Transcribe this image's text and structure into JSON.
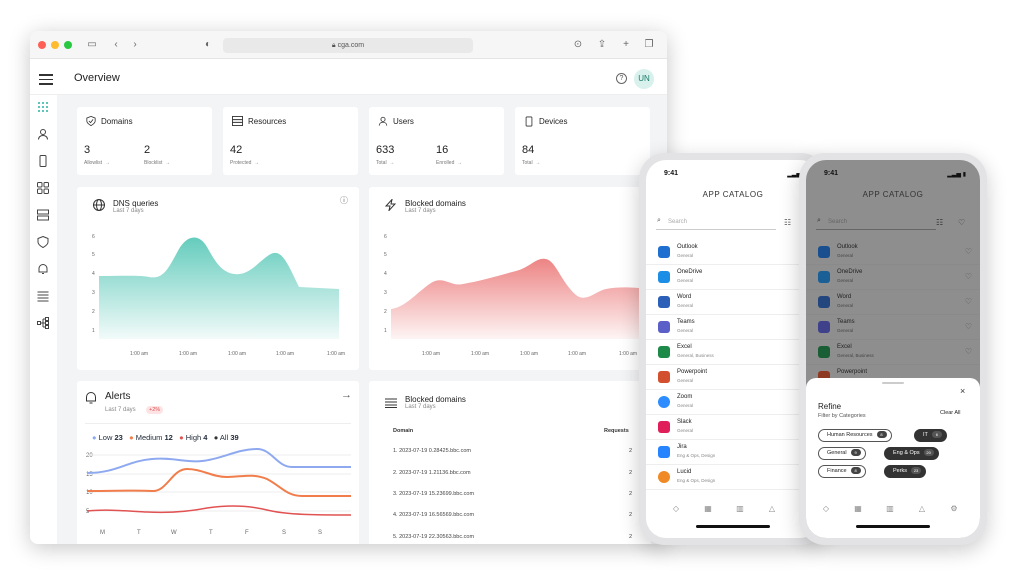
{
  "browser": {
    "url": "cga.com"
  },
  "header": {
    "title": "Overview",
    "avatar": "UN"
  },
  "stats": [
    {
      "title": "Domains",
      "items": [
        {
          "value": "3",
          "label": "Allowlist"
        },
        {
          "value": "2",
          "label": "Blocklist"
        }
      ]
    },
    {
      "title": "Resources",
      "items": [
        {
          "value": "42",
          "label": "Protected"
        }
      ]
    },
    {
      "title": "Users",
      "items": [
        {
          "value": "633",
          "label": "Total"
        },
        {
          "value": "16",
          "label": "Enrolled"
        }
      ]
    },
    {
      "title": "Devices",
      "items": [
        {
          "value": "84",
          "label": "Total"
        }
      ]
    }
  ],
  "dns": {
    "title": "DNS queries",
    "sub": "Last 7 days",
    "yticks": [
      "6",
      "5",
      "4",
      "3",
      "2",
      "1"
    ],
    "xticks": [
      "1:00 am",
      "1:00 am",
      "1:00 am",
      "1:00 am",
      "1:00 am"
    ],
    "color": "#5cc9b9"
  },
  "blocked_chart": {
    "title": "Blocked domains",
    "sub": "Last 7 days",
    "yticks": [
      "6",
      "5",
      "4",
      "3",
      "2",
      "1"
    ],
    "xticks": [
      "1:00 am",
      "1:00 am",
      "1:00 am",
      "1:00 am",
      "1:00 am"
    ],
    "color": "#ec7d7d"
  },
  "alerts": {
    "title": "Alerts",
    "sub": "Last 7 days",
    "badge": "+2%",
    "legend": [
      {
        "label": "Low",
        "count": "23",
        "color": "#8ea9f0"
      },
      {
        "label": "Medium",
        "count": "12",
        "color": "#f07d4b"
      },
      {
        "label": "High",
        "count": "4",
        "color": "#e15252"
      },
      {
        "label": "All",
        "count": "39",
        "color": "#333333"
      }
    ],
    "yticks": [
      "20",
      "15",
      "10",
      "5"
    ],
    "xticks": [
      "M",
      "T",
      "W",
      "T",
      "F",
      "S",
      "S"
    ]
  },
  "blocked_table": {
    "title": "Blocked domains",
    "sub": "Last 7 days",
    "col_domain": "Domain",
    "col_requests": "Requests",
    "rows": [
      {
        "domain": "1. 2023-07-19 0.28425.bbc.com",
        "requests": "2"
      },
      {
        "domain": "2. 2023-07-19 1.21136.bbc.com",
        "requests": "2"
      },
      {
        "domain": "3. 2023-07-19 15.23699.bbc.com",
        "requests": "2"
      },
      {
        "domain": "4. 2023-07-19 16.56569.bbc.com",
        "requests": "2"
      },
      {
        "domain": "5. 2023-07-19 22.30563.bbc.com",
        "requests": "2"
      }
    ]
  },
  "phone": {
    "time": "9:41",
    "title": "APP CATALOG",
    "search_placeholder": "Search",
    "apps": [
      {
        "name": "Outlook",
        "cat": "General",
        "color": "#1f6fd1"
      },
      {
        "name": "OneDrive",
        "cat": "General",
        "color": "#1d8ee6"
      },
      {
        "name": "Word",
        "cat": "General",
        "color": "#2b5fb8"
      },
      {
        "name": "Teams",
        "cat": "General",
        "color": "#5b5fc7"
      },
      {
        "name": "Excel",
        "cat": "General, Business",
        "color": "#1e8a4a"
      },
      {
        "name": "Powerpoint",
        "cat": "General",
        "color": "#d2502e"
      },
      {
        "name": "Zoom",
        "cat": "General",
        "color": "#2d8cff"
      },
      {
        "name": "Slack",
        "cat": "General",
        "color": "#e01e5a"
      },
      {
        "name": "Jira",
        "cat": "Eng & Ops, Design",
        "color": "#2684ff"
      },
      {
        "name": "Lucid",
        "cat": "Eng & Ops, Design",
        "color": "#f08a24"
      }
    ]
  },
  "refine": {
    "title": "Refine",
    "sub": "Filter by Categories",
    "clear": "Clear All",
    "chips": [
      {
        "label": "Human Resources",
        "count": "8",
        "active": false
      },
      {
        "label": "IT",
        "count": "6",
        "active": true
      },
      {
        "label": "General",
        "count": "9",
        "active": false
      },
      {
        "label": "Eng & Ops",
        "count": "20",
        "active": true
      },
      {
        "label": "Finance",
        "count": "8",
        "active": false
      },
      {
        "label": "Perks",
        "count": "23",
        "active": true
      }
    ]
  }
}
